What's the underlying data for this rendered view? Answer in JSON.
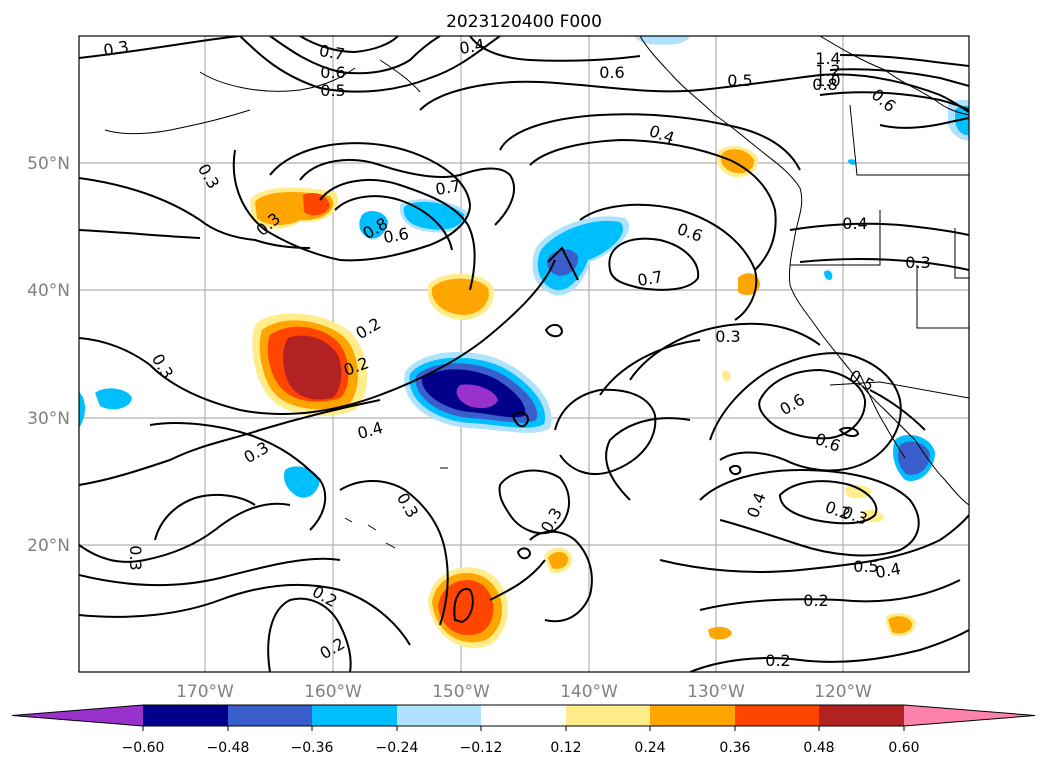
{
  "title": "2023120400 F000",
  "longitude_labels": [
    "170°W",
    "160°W",
    "150°W",
    "140°W",
    "130°W",
    "120°W"
  ],
  "latitude_labels": [
    "50°N",
    "40°N",
    "30°N",
    "20°N"
  ],
  "colorbar": {
    "tick_labels": [
      "−0.60",
      "−0.48",
      "−0.36",
      "−0.24",
      "−0.12",
      "0.12",
      "0.24",
      "0.36",
      "0.48",
      "0.60"
    ],
    "colors": [
      "#9932cc",
      "#00008b",
      "#3a5fcd",
      "#00bfff",
      "#b0e2ff",
      "#ffffff",
      "#ffec8b",
      "#ffa500",
      "#ff4500",
      "#b22222",
      "#ff82ab"
    ]
  },
  "contour_labels": [
    "0.3",
    "0.7",
    "0.6",
    "0.5",
    "0.4",
    "0.6",
    "1.4",
    "1.2",
    "1.0",
    "0.8",
    "0.6",
    "0.5",
    "0.4",
    "0.3",
    "0.3",
    "0.7",
    "0.8",
    "0.6",
    "0.6",
    "0.7",
    "0.4",
    "0.3",
    "0.2",
    "0.3",
    "0.2",
    "0.3",
    "0.4",
    "0.3",
    "0.3",
    "0.3",
    "0.6",
    "0.6",
    "0.5",
    "0.4",
    "0.2",
    "0.3",
    "0.5",
    "0.4",
    "0.2",
    "0.3",
    "0.2",
    "0.2",
    "0.2"
  ]
}
